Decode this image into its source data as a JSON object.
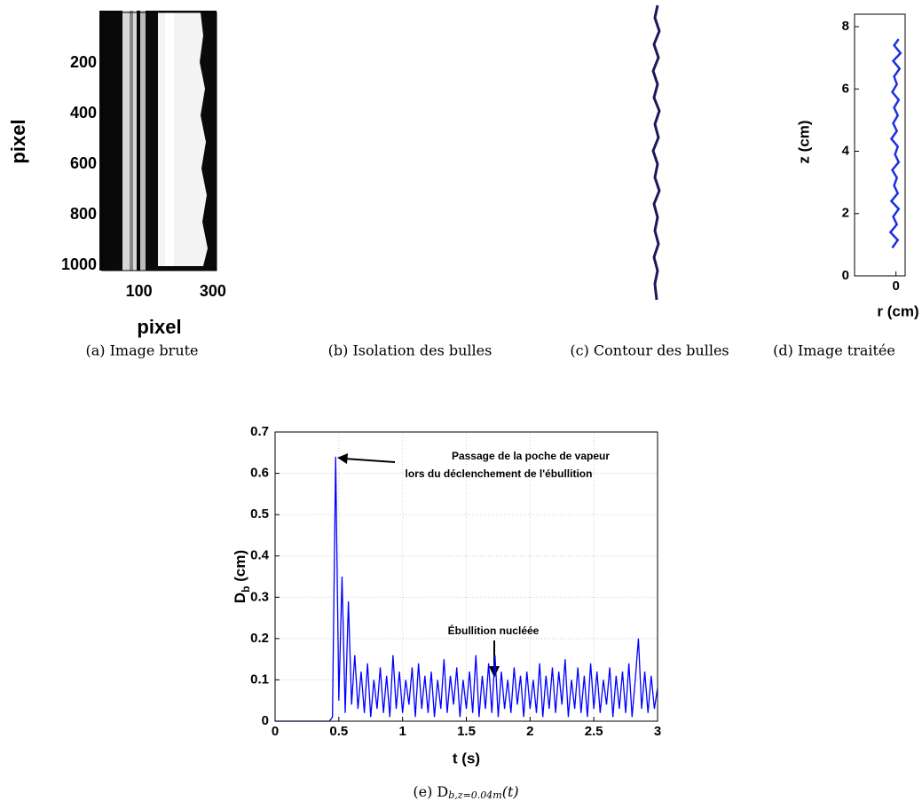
{
  "chart_data": [
    {
      "type": "image",
      "caption": "(a) Image brute",
      "xlabel": "pixel",
      "ylabel": "pixel",
      "xlim": [
        0,
        310
      ],
      "xticks": [
        100,
        300
      ],
      "ylim": [
        0,
        1020
      ],
      "yticks": [
        200,
        400,
        600,
        800,
        1000
      ],
      "y_inverted": true
    },
    {
      "type": "image",
      "caption": "(b) Isolation des bulles"
    },
    {
      "type": "image",
      "caption": "(c) Contour des bulles"
    },
    {
      "type": "line",
      "caption": "(d) Image traitée",
      "xlabel": "r (cm)",
      "ylabel": "z (cm)",
      "color": "#1f2fe0",
      "x": [
        -0.04,
        0.02,
        -0.06,
        0.01,
        -0.03,
        0.03,
        -0.05,
        0.02,
        -0.02,
        0.01,
        -0.04,
        0.03,
        -0.01,
        0.02,
        -0.05,
        0.01,
        -0.03,
        0.02,
        -0.02,
        0.03,
        -0.04,
        0.01,
        -0.02,
        0.04,
        -0.03,
        0.05,
        -0.02,
        0.03
      ],
      "values": [
        0.9,
        1.15,
        1.4,
        1.65,
        1.9,
        2.15,
        2.4,
        2.65,
        2.9,
        3.15,
        3.4,
        3.65,
        3.9,
        4.15,
        4.4,
        4.65,
        4.9,
        5.15,
        5.4,
        5.65,
        5.9,
        6.15,
        6.4,
        6.65,
        6.9,
        7.15,
        7.4,
        7.6
      ],
      "xlim": [
        -0.45,
        0.1
      ],
      "xticks": [
        0
      ],
      "ylim": [
        0,
        8.4
      ],
      "yticks": [
        0,
        2,
        4,
        6,
        8
      ]
    },
    {
      "type": "line",
      "caption": {
        "text": "(e) D",
        "subscript": "b,z=0.04m",
        "suffix": "(t)"
      },
      "xlabel": "t (s)",
      "ylabel": {
        "text": "D",
        "subscript": "b",
        "suffix": " (cm)"
      },
      "color": "#0000ff",
      "grid": true,
      "x": [
        0,
        0.025,
        0.05,
        0.075,
        0.1,
        0.125,
        0.15,
        0.175,
        0.2,
        0.225,
        0.25,
        0.275,
        0.3,
        0.325,
        0.35,
        0.375,
        0.4,
        0.425,
        0.45,
        0.475,
        0.5,
        0.525,
        0.55,
        0.575,
        0.6,
        0.625,
        0.65,
        0.675,
        0.7,
        0.725,
        0.75,
        0.775,
        0.8,
        0.825,
        0.85,
        0.875,
        0.9,
        0.925,
        0.95,
        0.975,
        1.0,
        1.025,
        1.05,
        1.075,
        1.1,
        1.125,
        1.15,
        1.175,
        1.2,
        1.225,
        1.25,
        1.275,
        1.3,
        1.325,
        1.35,
        1.375,
        1.4,
        1.425,
        1.45,
        1.475,
        1.5,
        1.525,
        1.55,
        1.575,
        1.6,
        1.625,
        1.65,
        1.675,
        1.7,
        1.725,
        1.75,
        1.775,
        1.8,
        1.825,
        1.85,
        1.875,
        1.9,
        1.925,
        1.95,
        1.975,
        2.0,
        2.025,
        2.05,
        2.075,
        2.1,
        2.125,
        2.15,
        2.175,
        2.2,
        2.225,
        2.25,
        2.275,
        2.3,
        2.325,
        2.35,
        2.375,
        2.4,
        2.425,
        2.45,
        2.475,
        2.5,
        2.525,
        2.55,
        2.575,
        2.6,
        2.625,
        2.65,
        2.675,
        2.7,
        2.725,
        2.75,
        2.775,
        2.8,
        2.825,
        2.85,
        2.875,
        2.9,
        2.925,
        2.95,
        2.975,
        3.0
      ],
      "values": [
        0,
        0,
        0,
        0,
        0,
        0,
        0,
        0,
        0,
        0,
        0,
        0,
        0,
        0,
        0,
        0,
        0,
        0,
        0.01,
        0.64,
        0.05,
        0.35,
        0.02,
        0.29,
        0.04,
        0.16,
        0.03,
        0.12,
        0.02,
        0.14,
        0.01,
        0.1,
        0.03,
        0.13,
        0.02,
        0.11,
        0.01,
        0.16,
        0.03,
        0.12,
        0.02,
        0.1,
        0.04,
        0.13,
        0.01,
        0.14,
        0.03,
        0.11,
        0.02,
        0.12,
        0.01,
        0.1,
        0.03,
        0.15,
        0.02,
        0.11,
        0.04,
        0.13,
        0.01,
        0.1,
        0.03,
        0.12,
        0.02,
        0.16,
        0.01,
        0.11,
        0.03,
        0.14,
        0.02,
        0.16,
        0.01,
        0.12,
        0.03,
        0.1,
        0.02,
        0.13,
        0.04,
        0.11,
        0.01,
        0.12,
        0.03,
        0.1,
        0.02,
        0.14,
        0.01,
        0.11,
        0.03,
        0.13,
        0.02,
        0.12,
        0.04,
        0.15,
        0.01,
        0.1,
        0.03,
        0.13,
        0.02,
        0.11,
        0.01,
        0.14,
        0.03,
        0.12,
        0.02,
        0.1,
        0.04,
        0.13,
        0.01,
        0.11,
        0.03,
        0.12,
        0.02,
        0.14,
        0.01,
        0.1,
        0.2,
        0.03,
        0.12,
        0.02,
        0.11,
        0.03,
        0.08
      ],
      "xlim": [
        0,
        3
      ],
      "xticks": [
        0,
        0.5,
        1,
        1.5,
        2,
        2.5,
        3
      ],
      "ylim": [
        0,
        0.7
      ],
      "yticks": [
        0,
        0.1,
        0.2,
        0.3,
        0.4,
        0.5,
        0.6,
        0.7
      ],
      "annotations": [
        {
          "text": [
            "Passage de la poche de vapeur",
            "lors du déclenchement de l'ébullition"
          ]
        },
        {
          "text": "Ébullition nucléée"
        }
      ]
    }
  ]
}
